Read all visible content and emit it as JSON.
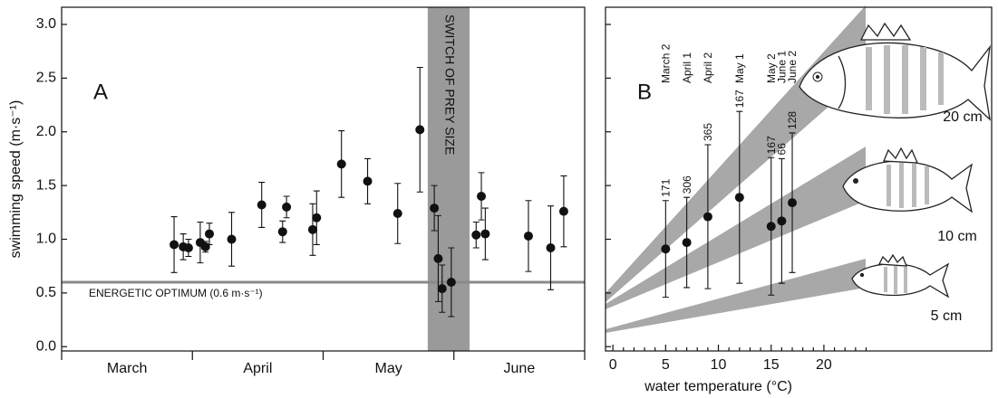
{
  "chart_data": [
    {
      "type": "errorbar",
      "panel_label": "A",
      "ylabel": "swimming speed (m·s⁻¹)",
      "categories": [
        "March",
        "April",
        "May",
        "June"
      ],
      "xlim": [
        0,
        4
      ],
      "xticks": [
        0,
        1,
        2,
        3,
        4
      ],
      "ylim": [
        -0.04,
        3.16
      ],
      "yticks": [
        {
          "value": 0,
          "label": "0.0"
        },
        {
          "value": 0.5,
          "label": "0.5"
        },
        {
          "value": 1,
          "label": "1.0"
        },
        {
          "value": 1.5,
          "label": "1.5"
        },
        {
          "value": 2,
          "label": "2.0"
        },
        {
          "value": 2.5,
          "label": "2.5"
        },
        {
          "value": 3,
          "label": "3.0"
        }
      ],
      "x": [
        0.86,
        0.93,
        0.97,
        1.06,
        1.1,
        1.13,
        1.3,
        1.53,
        1.69,
        1.72,
        1.92,
        1.95,
        2.14,
        2.34,
        2.57,
        2.74,
        2.85,
        2.88,
        2.91,
        2.98,
        3.17,
        3.21,
        3.24,
        3.57,
        3.74,
        3.84
      ],
      "values": [
        0.95,
        0.93,
        0.92,
        0.97,
        0.93,
        1.05,
        1.0,
        1.32,
        1.07,
        1.3,
        1.09,
        1.2,
        1.7,
        1.54,
        1.24,
        2.02,
        1.29,
        0.82,
        0.54,
        0.6,
        1.04,
        1.4,
        1.05,
        1.03,
        0.92,
        1.26
      ],
      "errors": [
        0.26,
        0.12,
        0.08,
        0.19,
        0.05,
        0.1,
        0.25,
        0.21,
        0.1,
        0.1,
        0.24,
        0.25,
        0.31,
        0.21,
        0.28,
        0.58,
        0.21,
        0.4,
        0.22,
        0.32,
        0.12,
        0.22,
        0.24,
        0.33,
        0.39,
        0.33
      ],
      "color": "#111111",
      "band": {
        "range": [
          2.8,
          3.12
        ],
        "label": "SWITCH OF PREY SIZE",
        "color": "#9a9a9a"
      },
      "hline": {
        "value": 0.6,
        "label": "ENERGETIC OPTIMUM (0.6 m·s⁻¹)",
        "color": "#8a8a8a"
      }
    },
    {
      "type": "errorbar",
      "panel_label": "B",
      "xlabel": "water temperature (°C)",
      "xlim": [
        -0.7,
        35.9
      ],
      "xticks": [
        0,
        5,
        10,
        15,
        20
      ],
      "xminorticks": [
        1,
        2,
        3,
        4,
        6,
        7,
        8,
        9,
        11,
        12,
        13,
        14,
        16,
        17,
        18,
        19,
        21,
        22,
        23,
        24
      ],
      "ylim": [
        -0.04,
        3.16
      ],
      "yticks": [
        0,
        0.5,
        1,
        1.5,
        2,
        2.5,
        3
      ],
      "categories": [
        "March 2",
        "April 1",
        "April 2",
        "May 1",
        "May 2",
        "June 1",
        "June 2"
      ],
      "x": [
        5,
        7,
        9,
        12,
        15,
        16,
        17
      ],
      "values": [
        0.91,
        0.97,
        1.21,
        1.39,
        1.12,
        1.17,
        1.34
      ],
      "errors": [
        0.45,
        0.42,
        0.67,
        0.8,
        0.64,
        0.58,
        0.65
      ],
      "n": [
        171,
        306,
        365,
        167,
        167,
        66,
        128
      ],
      "color": "#111111",
      "size_labels": [
        "20 cm",
        "10 cm",
        "5 cm"
      ]
    }
  ]
}
